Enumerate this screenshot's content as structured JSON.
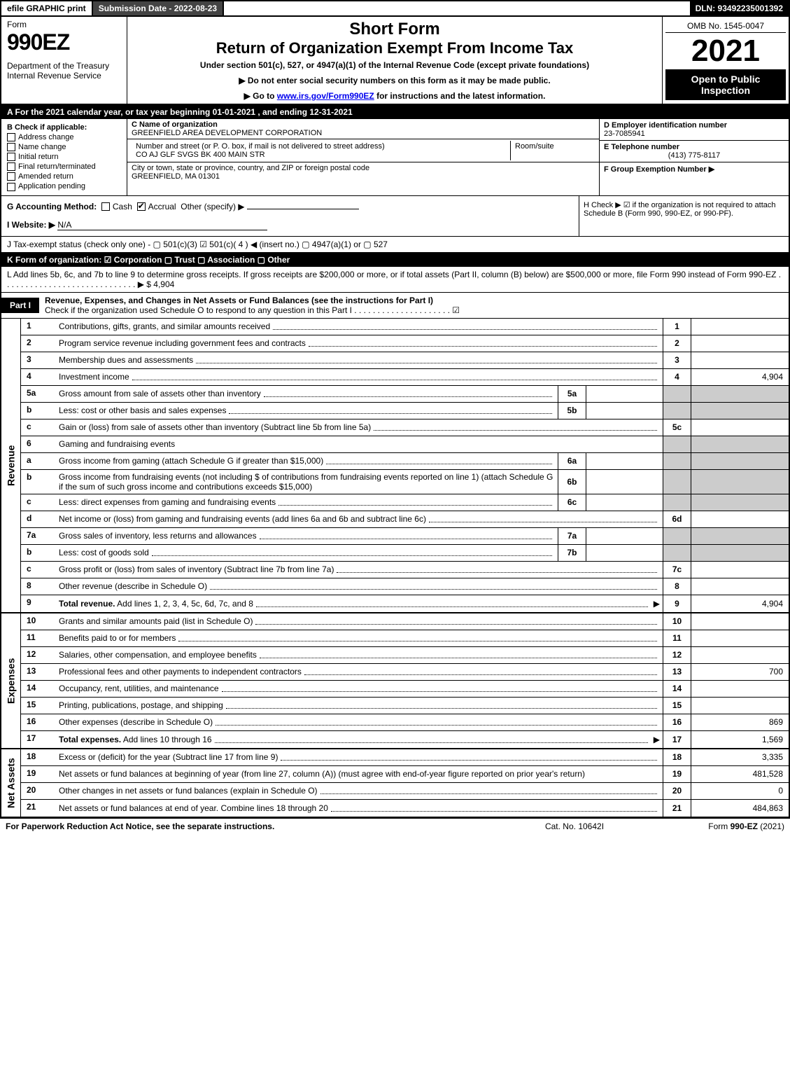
{
  "colors": {
    "black": "#000000",
    "white": "#ffffff",
    "dark_gray": "#444444",
    "shade_gray": "#cccccc",
    "link_blue": "#0000ee"
  },
  "topbar": {
    "efile": "efile GRAPHIC print",
    "submission": "Submission Date - 2022-08-23",
    "dln": "DLN: 93492235001392"
  },
  "header": {
    "form_word": "Form",
    "form_num": "990EZ",
    "dept": "Department of the Treasury\nInternal Revenue Service",
    "title1": "Short Form",
    "title2": "Return of Organization Exempt From Income Tax",
    "subtitle": "Under section 501(c), 527, or 4947(a)(1) of the Internal Revenue Code (except private foundations)",
    "note1": "▶ Do not enter social security numbers on this form as it may be made public.",
    "note2": "▶ Go to www.irs.gov/Form990EZ for instructions and the latest information.",
    "omb": "OMB No. 1545-0047",
    "year": "2021",
    "inspect": "Open to Public Inspection"
  },
  "line_a": "A  For the 2021 calendar year, or tax year beginning 01-01-2021 , and ending 12-31-2021",
  "section_b": {
    "label": "B  Check if applicable:",
    "opts": [
      "Address change",
      "Name change",
      "Initial return",
      "Final return/terminated",
      "Amended return",
      "Application pending"
    ]
  },
  "section_c": {
    "name_label": "C Name of organization",
    "name": "GREENFIELD AREA DEVELOPMENT CORPORATION",
    "street_label": "Number and street (or P. O. box, if mail is not delivered to street address)",
    "room_label": "Room/suite",
    "street": "CO AJ GLF SVGS BK 400 MAIN STR",
    "city_label": "City or town, state or province, country, and ZIP or foreign postal code",
    "city": "GREENFIELD, MA  01301"
  },
  "section_d": {
    "ein_label": "D Employer identification number",
    "ein": "23-7085941",
    "phone_label": "E Telephone number",
    "phone": "(413) 775-8117",
    "group_label": "F Group Exemption Number   ▶"
  },
  "line_g": {
    "label": "G Accounting Method:",
    "cash": "Cash",
    "accrual": "Accrual",
    "other": "Other (specify) ▶"
  },
  "line_h": "H  Check ▶ ☑ if the organization is not required to attach Schedule B (Form 990, 990-EZ, or 990-PF).",
  "line_i": {
    "label": "I Website: ▶",
    "value": "N/A"
  },
  "line_j": "J Tax-exempt status (check only one) - ▢ 501(c)(3)  ☑ 501(c)( 4 ) ◀ (insert no.)  ▢ 4947(a)(1) or  ▢ 527",
  "line_k": "K Form of organization:   ☑ Corporation   ▢ Trust   ▢ Association   ▢ Other",
  "line_l": "L Add lines 5b, 6c, and 7b to line 9 to determine gross receipts. If gross receipts are $200,000 or more, or if total assets (Part II, column (B) below) are $500,000 or more, file Form 990 instead of Form 990-EZ  . . . . . . . . . . . . . . . . . . . . . . . . . . . . .  ▶ $ 4,904",
  "part1": {
    "label": "Part I",
    "title": "Revenue, Expenses, and Changes in Net Assets or Fund Balances (see the instructions for Part I)",
    "check_line": "Check if the organization used Schedule O to respond to any question in this Part I . . . . . . . . . . . . . . . . . . . . .  ☑"
  },
  "sides": {
    "revenue": "Revenue",
    "expenses": "Expenses",
    "netassets": "Net Assets"
  },
  "rows": [
    {
      "n": "1",
      "d": "Contributions, gifts, grants, and similar amounts received",
      "rn": "1",
      "rv": ""
    },
    {
      "n": "2",
      "d": "Program service revenue including government fees and contracts",
      "rn": "2",
      "rv": ""
    },
    {
      "n": "3",
      "d": "Membership dues and assessments",
      "rn": "3",
      "rv": ""
    },
    {
      "n": "4",
      "d": "Investment income",
      "rn": "4",
      "rv": "4,904"
    },
    {
      "n": "5a",
      "d": "Gross amount from sale of assets other than inventory",
      "mn": "5a",
      "shade": true
    },
    {
      "n": "b",
      "d": "Less: cost or other basis and sales expenses",
      "mn": "5b",
      "shade": true
    },
    {
      "n": "c",
      "d": "Gain or (loss) from sale of assets other than inventory (Subtract line 5b from line 5a)",
      "rn": "5c",
      "rv": ""
    },
    {
      "n": "6",
      "d": "Gaming and fundraising events",
      "full": true,
      "shade": true
    },
    {
      "n": "a",
      "d": "Gross income from gaming (attach Schedule G if greater than $15,000)",
      "mn": "6a",
      "shade": true
    },
    {
      "n": "b",
      "d": "Gross income from fundraising events (not including $                    of contributions from fundraising events reported on line 1) (attach Schedule G if the sum of such gross income and contributions exceeds $15,000)",
      "mn": "6b",
      "shade": true,
      "wrap": true
    },
    {
      "n": "c",
      "d": "Less: direct expenses from gaming and fundraising events",
      "mn": "6c",
      "shade": true
    },
    {
      "n": "d",
      "d": "Net income or (loss) from gaming and fundraising events (add lines 6a and 6b and subtract line 6c)",
      "rn": "6d",
      "rv": ""
    },
    {
      "n": "7a",
      "d": "Gross sales of inventory, less returns and allowances",
      "mn": "7a",
      "shade": true
    },
    {
      "n": "b",
      "d": "Less: cost of goods sold",
      "mn": "7b",
      "shade": true
    },
    {
      "n": "c",
      "d": "Gross profit or (loss) from sales of inventory (Subtract line 7b from line 7a)",
      "rn": "7c",
      "rv": ""
    },
    {
      "n": "8",
      "d": "Other revenue (describe in Schedule O)",
      "rn": "8",
      "rv": ""
    },
    {
      "n": "9",
      "d": "Total revenue. Add lines 1, 2, 3, 4, 5c, 6d, 7c, and 8",
      "rn": "9",
      "rv": "4,904",
      "bold": true,
      "arrow": true
    }
  ],
  "rows_exp": [
    {
      "n": "10",
      "d": "Grants and similar amounts paid (list in Schedule O)",
      "rn": "10",
      "rv": ""
    },
    {
      "n": "11",
      "d": "Benefits paid to or for members",
      "rn": "11",
      "rv": ""
    },
    {
      "n": "12",
      "d": "Salaries, other compensation, and employee benefits",
      "rn": "12",
      "rv": ""
    },
    {
      "n": "13",
      "d": "Professional fees and other payments to independent contractors",
      "rn": "13",
      "rv": "700"
    },
    {
      "n": "14",
      "d": "Occupancy, rent, utilities, and maintenance",
      "rn": "14",
      "rv": ""
    },
    {
      "n": "15",
      "d": "Printing, publications, postage, and shipping",
      "rn": "15",
      "rv": ""
    },
    {
      "n": "16",
      "d": "Other expenses (describe in Schedule O)",
      "rn": "16",
      "rv": "869"
    },
    {
      "n": "17",
      "d": "Total expenses. Add lines 10 through 16",
      "rn": "17",
      "rv": "1,569",
      "bold": true,
      "arrow": true
    }
  ],
  "rows_net": [
    {
      "n": "18",
      "d": "Excess or (deficit) for the year (Subtract line 17 from line 9)",
      "rn": "18",
      "rv": "3,335"
    },
    {
      "n": "19",
      "d": "Net assets or fund balances at beginning of year (from line 27, column (A)) (must agree with end-of-year figure reported on prior year's return)",
      "rn": "19",
      "rv": "481,528",
      "wrap": true
    },
    {
      "n": "20",
      "d": "Other changes in net assets or fund balances (explain in Schedule O)",
      "rn": "20",
      "rv": "0"
    },
    {
      "n": "21",
      "d": "Net assets or fund balances at end of year. Combine lines 18 through 20",
      "rn": "21",
      "rv": "484,863"
    }
  ],
  "footer": {
    "left": "For Paperwork Reduction Act Notice, see the separate instructions.",
    "center": "Cat. No. 10642I",
    "right_prefix": "Form ",
    "right_form": "990-EZ",
    "right_suffix": " (2021)"
  }
}
